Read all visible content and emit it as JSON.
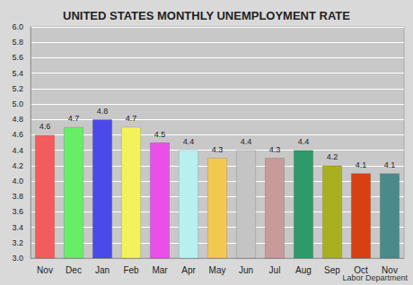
{
  "chart_data": {
    "type": "bar",
    "title": "UNITED STATES MONTHLY UNEMPLOYMENT RATE",
    "categories": [
      "Nov",
      "Dec",
      "Jan",
      "Feb",
      "Mar",
      "Apr",
      "May",
      "Jun",
      "Jul",
      "Aug",
      "Sep",
      "Oct",
      "Nov"
    ],
    "values": [
      4.6,
      4.7,
      4.8,
      4.7,
      4.5,
      4.4,
      4.3,
      4.4,
      4.3,
      4.4,
      4.2,
      4.1,
      4.1
    ],
    "colors": [
      "#f25c5c",
      "#66ee66",
      "#4a4ae8",
      "#f2f25a",
      "#e850e8",
      "#b8f0f0",
      "#f2c850",
      "#c4c4c4",
      "#c89a9a",
      "#2e9a6a",
      "#a8b020",
      "#d84010",
      "#4a8a8a"
    ],
    "ylim": [
      3,
      6
    ],
    "yticks": [
      {
        "value": 3,
        "label": "3.0"
      },
      3.2,
      3.4,
      3.6,
      3.8,
      {
        "value": 4,
        "label": "4.0"
      },
      4.2,
      4.4,
      4.6,
      4.8,
      {
        "value": 5,
        "label": "5.0"
      },
      5.2,
      5.4,
      5.6,
      5.8,
      {
        "value": 6,
        "label": "6.0"
      }
    ],
    "grid": true,
    "data_labels": true,
    "annotations": [
      "Labor Department"
    ]
  }
}
